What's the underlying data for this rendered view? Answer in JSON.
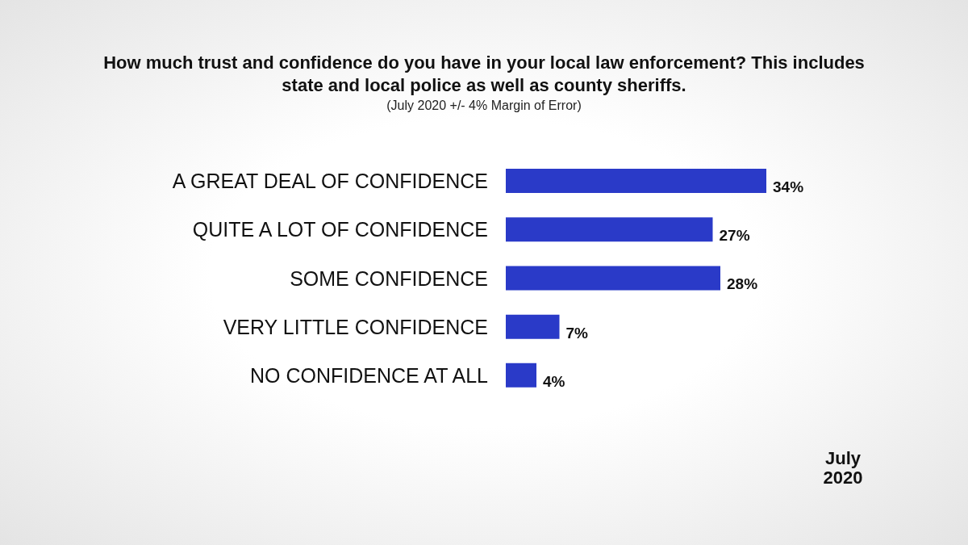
{
  "chart_data": {
    "type": "bar",
    "orientation": "horizontal",
    "title": "How much trust and confidence do you have in your local law enforcement? This includes state and local police as well as county sheriffs.",
    "subtitle": "(July 2020 +/- 4% Margin of Error)",
    "categories": [
      "A GREAT DEAL OF CONFIDENCE",
      "QUITE A LOT OF CONFIDENCE",
      "SOME CONFIDENCE",
      "VERY LITTLE CONFIDENCE",
      "NO CONFIDENCE AT ALL"
    ],
    "values": [
      34,
      27,
      28,
      7,
      4
    ],
    "value_labels": [
      "34%",
      "27%",
      "28%",
      "7%",
      "4%"
    ],
    "color": "#2a3ac8",
    "annotations": [
      "July 2020"
    ]
  }
}
